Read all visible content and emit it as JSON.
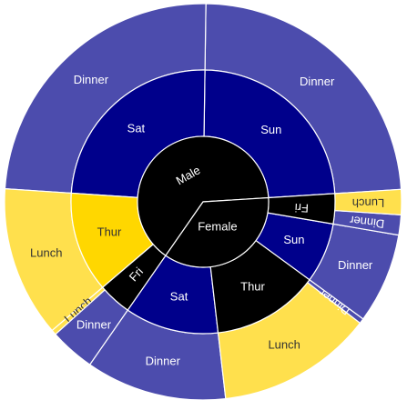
{
  "chart_data": {
    "type": "sunburst",
    "colors": {
      "level0": "#000000",
      "level1_male": "#00008b",
      "level1_female": "#00008b",
      "level1_thur": "#ffd700",
      "level2_dinner": "#4c4cad",
      "level2_lunch": "#ffe04d",
      "text_light": "#ffffff",
      "text_dark": "#333333"
    },
    "rings": [
      {
        "level": 0,
        "segments": [
          {
            "label": "Male",
            "value": 157,
            "color": "#000000",
            "text_color": "#ffffff"
          },
          {
            "label": "Female",
            "value": 87,
            "color": "#000000",
            "text_color": "#ffffff"
          }
        ]
      },
      {
        "level": 1,
        "segments": [
          {
            "label": "Sun",
            "value": 58,
            "color": "#00008b",
            "text_color": "#ffffff",
            "parent": "Male"
          },
          {
            "label": "Sat",
            "value": 59,
            "color": "#00008b",
            "text_color": "#ffffff",
            "parent": "Male"
          },
          {
            "label": "Thur",
            "value": 30,
            "color": "#ffd700",
            "text_color": "#333333",
            "parent": "Male"
          },
          {
            "label": "Fri",
            "value": 10,
            "color": "#000000",
            "text_color": "#ffffff",
            "parent": "Male"
          },
          {
            "label": "Sat",
            "value": 28,
            "color": "#00008b",
            "text_color": "#ffffff",
            "parent": "Female"
          },
          {
            "label": "Thur",
            "value": 32,
            "color": "#000000",
            "text_color": "#ffffff",
            "parent": "Female"
          },
          {
            "label": "Sun",
            "value": 18,
            "color": "#00008b",
            "text_color": "#ffffff",
            "parent": "Female"
          },
          {
            "label": "Fri",
            "value": 9,
            "color": "#000000",
            "text_color": "#ffffff",
            "parent": "Female"
          }
        ]
      },
      {
        "level": 2,
        "segments": [
          {
            "label": "Dinner",
            "value": 58,
            "color": "#4c4cad",
            "text_color": "#ffffff",
            "parent": "Male/Sun"
          },
          {
            "label": "Dinner",
            "value": 59,
            "color": "#4c4cad",
            "text_color": "#ffffff",
            "parent": "Male/Sat"
          },
          {
            "label": "Lunch",
            "value": 30,
            "color": "#ffe04d",
            "text_color": "#333333",
            "parent": "Male/Thur"
          },
          {
            "label": "Lunch",
            "value": 1,
            "color": "#ffe04d",
            "text_color": "#333333",
            "parent": "Male/Fri"
          },
          {
            "label": "Dinner",
            "value": 9,
            "color": "#4c4cad",
            "text_color": "#ffffff",
            "parent": "Male/Fri"
          },
          {
            "label": "Dinner",
            "value": 28,
            "color": "#4c4cad",
            "text_color": "#ffffff",
            "parent": "Female/Sat"
          },
          {
            "label": "Lunch",
            "value": 31,
            "color": "#ffe04d",
            "text_color": "#333333",
            "parent": "Female/Thur"
          },
          {
            "label": "Dinner",
            "value": 1,
            "color": "#4c4cad",
            "text_color": "#ffffff",
            "parent": "Female/Thur"
          },
          {
            "label": "Dinner",
            "value": 18,
            "color": "#4c4cad",
            "text_color": "#ffffff",
            "parent": "Female/Sun"
          },
          {
            "label": "Dinner",
            "value": 4,
            "color": "#4c4cad",
            "text_color": "#ffffff",
            "parent": "Female/Fri"
          },
          {
            "label": "Lunch",
            "value": 5,
            "color": "#ffe04d",
            "text_color": "#333333",
            "parent": "Female/Fri"
          }
        ]
      }
    ]
  }
}
